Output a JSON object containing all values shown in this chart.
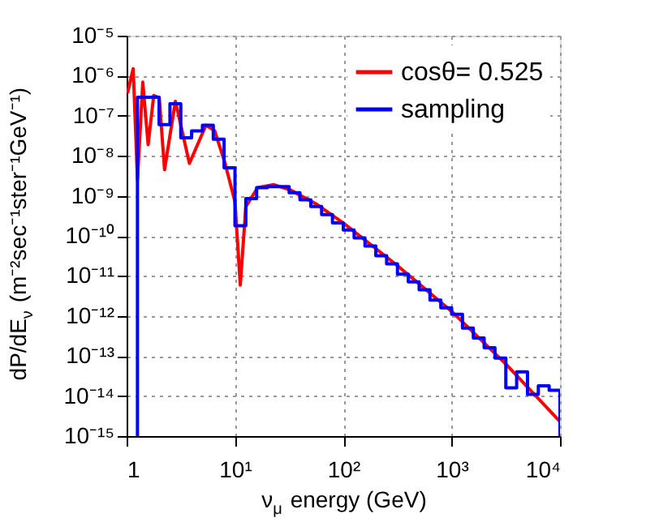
{
  "chart_data": {
    "type": "line",
    "xlabel": "ν$_{μ}$ energy (GeV)",
    "ylabel": "dP/dE$_{ν}$ (m⁻²sec⁻¹ster⁻¹GeV⁻¹)",
    "log": "xy",
    "grid": true,
    "legend": "top right",
    "line_style": "solid",
    "marker": "none",
    "xlim": [
      1,
      10000
    ],
    "ylim": [
      1e-15,
      1e-05
    ],
    "xticks": [
      1,
      {
        "value": 10,
        "label": "10¹"
      },
      {
        "value": 100,
        "label": "10²"
      },
      {
        "value": 1000,
        "label": "10³"
      },
      {
        "value": 10000,
        "label": "10⁴"
      }
    ],
    "yticks": [
      {
        "value": 1e-15,
        "label": "10⁻¹⁵"
      },
      {
        "value": 1e-14,
        "label": "10⁻¹⁴"
      },
      {
        "value": 1e-13,
        "label": "10⁻¹³"
      },
      {
        "value": 1e-12,
        "label": "10⁻¹²"
      },
      {
        "value": 1e-11,
        "label": "10⁻¹¹"
      },
      {
        "value": 1e-10,
        "label": "10⁻¹⁰"
      },
      {
        "value": 1e-09,
        "label": "10⁻⁹"
      },
      {
        "value": 1e-08,
        "label": "10⁻⁸"
      },
      {
        "value": 1e-07,
        "label": "10⁻⁷"
      },
      {
        "value": 1e-06,
        "label": "10⁻⁶"
      },
      {
        "value": 1e-05,
        "label": "10⁻⁵"
      }
    ],
    "series": [
      {
        "name": "cosθ= 0.525",
        "color": "#ff0000",
        "type": "line",
        "x": [
          1.02,
          1.15,
          1.26,
          1.41,
          1.58,
          1.78,
          2.0,
          2.24,
          2.82,
          3.8,
          5.4,
          6.5,
          8.1,
          10,
          11.2,
          12.6,
          16.2,
          22.9,
          32.4,
          56,
          100,
          316,
          1000,
          3162,
          10000
        ],
        "values": [
          3.7e-07,
          1.5e-06,
          2.5e-09,
          6.9e-07,
          1.9e-08,
          3.2e-07,
          2.8e-07,
          4.5e-09,
          2.3e-07,
          6.5e-09,
          5.8e-08,
          4.2e-08,
          6.5e-09,
          7.2e-10,
          5.9e-12,
          5.4e-10,
          1.6e-09,
          1.9e-09,
          1.4e-09,
          6.3e-10,
          2.1e-10,
          1.8e-11,
          1.3e-12,
          6.3e-14,
          2.3e-15
        ]
      },
      {
        "name": "sampling",
        "color": "#0000ff",
        "type": "step",
        "x": [
          1.259,
          1.259,
          1.585,
          1.995,
          2.512,
          3.162,
          3.981,
          5.012,
          6.31,
          7.943,
          10,
          12.59,
          15.85,
          19.95,
          25.12,
          31.62,
          39.81,
          50.12,
          63.1,
          79.43,
          100,
          125.9,
          158.5,
          199.5,
          251.2,
          316.2,
          398.1,
          501.2,
          631,
          794.3,
          1000,
          1259,
          1585,
          1995,
          2512,
          3162,
          3981,
          5012,
          6310,
          7943,
          10000,
          10000
        ],
        "values": [
          1e-15,
          2.9e-07,
          2.9e-07,
          6e-08,
          2e-07,
          2.8e-08,
          4.2e-08,
          5.8e-08,
          2.6e-08,
          5e-09,
          1.8e-10,
          8.5e-10,
          1.6e-09,
          1.7e-09,
          1.7e-09,
          1.2e-09,
          8e-10,
          5.4e-10,
          3.4e-10,
          2.1e-10,
          1.4e-10,
          8.9e-11,
          5.6e-11,
          3.2e-11,
          2e-11,
          1.1e-11,
          7.1e-12,
          4.5e-12,
          2.5e-12,
          1.6e-12,
          1.1e-12,
          5e-13,
          2.8e-13,
          1.6e-13,
          8.9e-14,
          1.6e-14,
          4e-14,
          1.1e-14,
          1.8e-14,
          1.4e-14,
          1.4e-14,
          1e-15
        ]
      }
    ]
  }
}
